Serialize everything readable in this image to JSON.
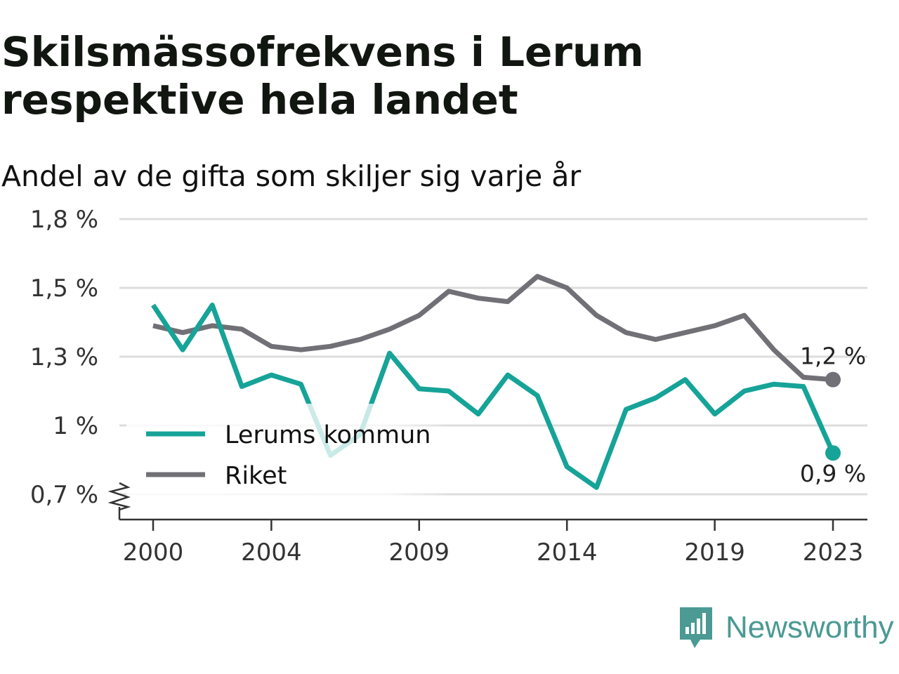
{
  "header": {
    "title": "Skilsmässofrekvens i Lerum respektive hela landet",
    "subtitle": "Andel av de gifta som skiljer sig varje år"
  },
  "brand": {
    "name": "Newsworthy",
    "icon": "newsworthy-logo-icon",
    "color": "#4b9a93"
  },
  "colors": {
    "lerum": "#16a398",
    "riket": "#707076",
    "grid": "#dddddd",
    "axis": "#333333"
  },
  "chart_data": {
    "type": "line",
    "x": [
      2000,
      2001,
      2002,
      2003,
      2004,
      2005,
      2006,
      2007,
      2008,
      2009,
      2010,
      2011,
      2012,
      2013,
      2014,
      2015,
      2016,
      2017,
      2018,
      2019,
      2020,
      2021,
      2022,
      2023
    ],
    "series": [
      {
        "name": "Lerums kommun",
        "color": "#16a398",
        "values": [
          1.45,
          1.32,
          1.45,
          1.17,
          1.22,
          1.18,
          0.87,
          0.96,
          1.31,
          1.16,
          1.15,
          1.05,
          1.22,
          1.13,
          0.82,
          0.73,
          1.07,
          1.12,
          1.2,
          1.05,
          1.15,
          1.18,
          1.17,
          0.88
        ]
      },
      {
        "name": "Riket",
        "color": "#707076",
        "values": [
          1.39,
          1.37,
          1.39,
          1.38,
          1.33,
          1.32,
          1.33,
          1.35,
          1.38,
          1.42,
          1.49,
          1.47,
          1.46,
          1.55,
          1.5,
          1.42,
          1.37,
          1.35,
          1.37,
          1.39,
          1.42,
          1.32,
          1.21,
          1.2
        ]
      }
    ],
    "yticks": [
      {
        "value": 0.7,
        "label": "0,7 %"
      },
      {
        "value": 1.0,
        "label": "1 %"
      },
      {
        "value": 1.3,
        "label": "1,3 %"
      },
      {
        "value": 1.5,
        "label": "1,5 %"
      },
      {
        "value": 1.8,
        "label": "1,8 %"
      }
    ],
    "xticks": [
      {
        "value": 2000,
        "label": "2000"
      },
      {
        "value": 2004,
        "label": "2004"
      },
      {
        "value": 2009,
        "label": "2009"
      },
      {
        "value": 2014,
        "label": "2014"
      },
      {
        "value": 2019,
        "label": "2019"
      },
      {
        "value": 2023,
        "label": "2023"
      }
    ],
    "ylim": [
      0.7,
      1.8
    ],
    "xlim": [
      2000,
      2023
    ],
    "grid": true,
    "axis_break": true,
    "legend": "bottom-left",
    "end_labels": [
      {
        "series": "Riket",
        "label": "1,2 %"
      },
      {
        "series": "Lerums kommun",
        "label": "0,9 %"
      }
    ],
    "title": "Skilsmässofrekvens i Lerum respektive hela landet",
    "subtitle": "Andel av de gifta som skiljer sig varje år"
  }
}
